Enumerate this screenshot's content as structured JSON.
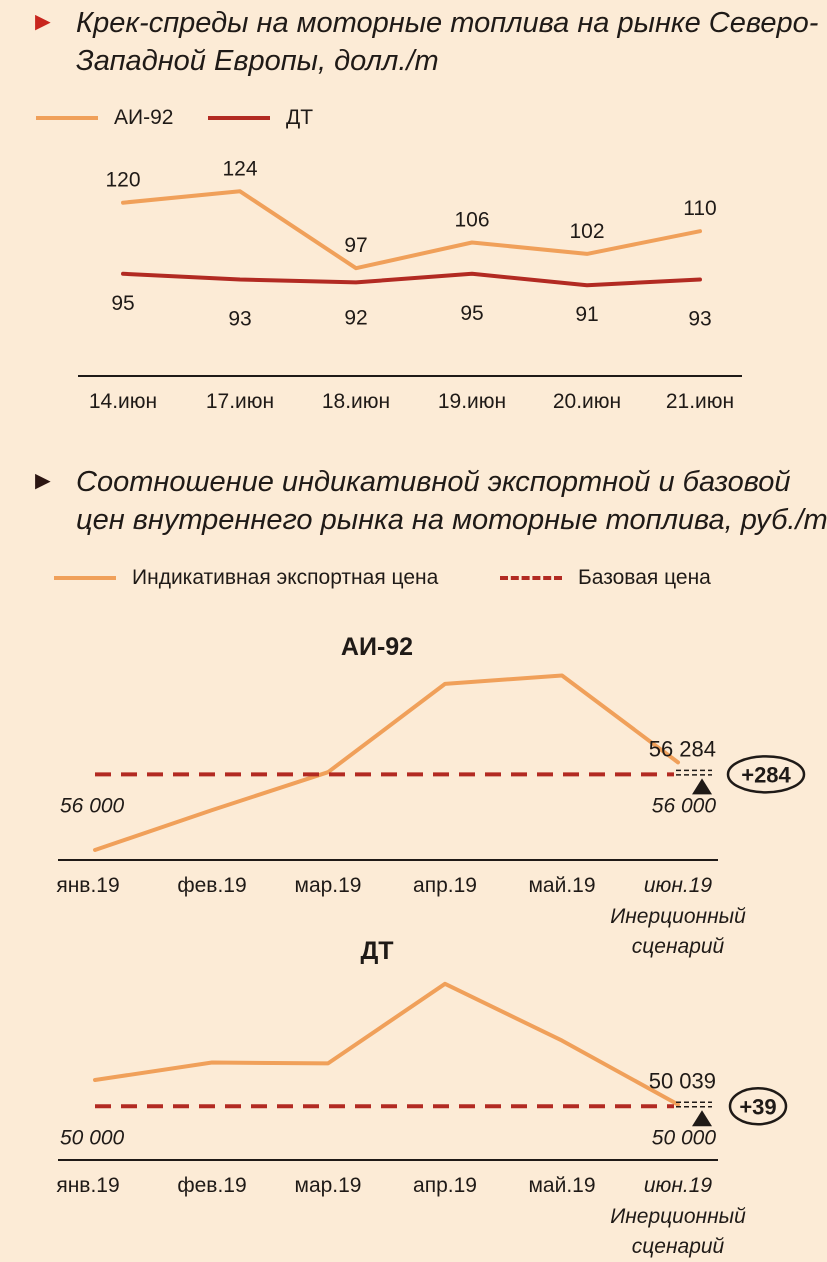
{
  "colors": {
    "background": "#fcebd6",
    "ai92": "#f0a05a",
    "dt": "#b22a22",
    "axis": "#1f1a17",
    "arrow1": "#c8261e",
    "arrow2": "#2b1512"
  },
  "section1": {
    "marker": "►",
    "title": "Крек-спреды на моторные топлива на рынке Северо-Западной Европы, долл./т",
    "legend": [
      {
        "name": "АИ-92",
        "style": "solid",
        "color_key": "ai92"
      },
      {
        "name": "ДТ",
        "style": "solid",
        "color_key": "dt"
      }
    ]
  },
  "section2": {
    "marker": "►",
    "title": "Соотношение индикативной экспортной и базовой цен внутреннего рынка на моторные топлива, руб./т",
    "legend": [
      {
        "name": "Индикативная экспортная цена",
        "style": "solid",
        "color_key": "ai92"
      },
      {
        "name": "Базовая цена",
        "style": "dashed",
        "color_key": "dt"
      }
    ]
  },
  "chart_data": [
    {
      "type": "line",
      "title": "",
      "categories": [
        "14.июн",
        "17.июн",
        "18.июн",
        "19.июн",
        "20.июн",
        "21.июн"
      ],
      "series": [
        {
          "name": "АИ-92",
          "values": [
            120,
            124,
            97,
            106,
            102,
            110
          ]
        },
        {
          "name": "ДТ",
          "values": [
            95,
            93,
            92,
            95,
            91,
            93
          ]
        }
      ],
      "ylim": [
        70,
        135
      ],
      "grid": false,
      "legend": "top-left"
    },
    {
      "type": "line",
      "title": "АИ-92",
      "categories": [
        "янв.19",
        "фев.19",
        "мар.19",
        "апр.19",
        "май.19",
        "июн.19"
      ],
      "last_category_note": "Инерционный сценарий",
      "series": [
        {
          "name": "Индикативная экспортная цена",
          "values": [
            54200,
            55150,
            56050,
            58150,
            58350,
            56284
          ]
        }
      ],
      "base_price": 56000,
      "base_label_left": "56 000",
      "base_label_right": "56 000",
      "end_value_label": "56 284",
      "diff_label": "+284",
      "ylim": [
        54200,
        58600
      ]
    },
    {
      "type": "line",
      "title": "ДТ",
      "categories": [
        "янв.19",
        "фев.19",
        "мар.19",
        "апр.19",
        "май.19",
        "июн.19"
      ],
      "last_category_note": "Инерционный сценарий",
      "series": [
        {
          "name": "Индикативная экспортная цена",
          "values": [
            50600,
            51000,
            50980,
            52800,
            51500,
            50039
          ]
        }
      ],
      "base_price": 50000,
      "base_label_left": "50 000",
      "base_label_right": "50 000",
      "end_value_label": "50 039",
      "diff_label": "+39",
      "ylim": [
        49800,
        53000
      ]
    }
  ]
}
